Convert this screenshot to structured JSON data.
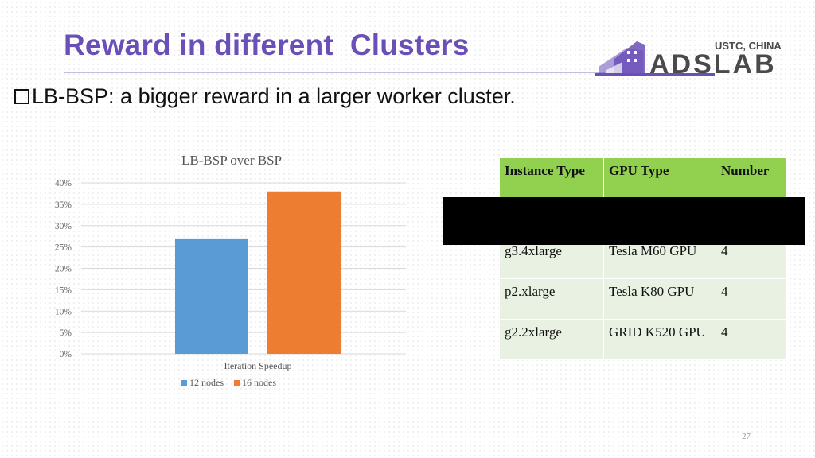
{
  "slide": {
    "title": "Reward in different  Clusters",
    "bullet": "LB-BSP: a bigger reward in a larger worker cluster.",
    "page_number": "27"
  },
  "logo": {
    "line1": "USTC, CHINA",
    "line2": "ADSLAB",
    "color": "#6a4fb8"
  },
  "chart_data": {
    "type": "bar",
    "title": "LB-BSP over BSP",
    "categories": [
      "Iteration Speedup"
    ],
    "series": [
      {
        "name": "12 nodes",
        "values": [
          27
        ],
        "color": "#5b9bd5"
      },
      {
        "name": "16 nodes",
        "values": [
          38
        ],
        "color": "#ed7d31"
      }
    ],
    "ylim": [
      0,
      40
    ],
    "yticks": [
      0,
      5,
      10,
      15,
      20,
      25,
      30,
      35,
      40
    ],
    "ytick_suffix": "%",
    "grid": true,
    "legend": "bottom"
  },
  "table": {
    "headers": [
      "Instance Type",
      "GPU Type",
      "Number"
    ],
    "rows": [
      [
        "g3.4xlarge",
        "Tesla M60 GPU",
        "4"
      ],
      [
        "p2.xlarge",
        "Tesla K80 GPU",
        "4"
      ],
      [
        "g2.2xlarge",
        "GRID K520 GPU",
        "4"
      ]
    ]
  }
}
